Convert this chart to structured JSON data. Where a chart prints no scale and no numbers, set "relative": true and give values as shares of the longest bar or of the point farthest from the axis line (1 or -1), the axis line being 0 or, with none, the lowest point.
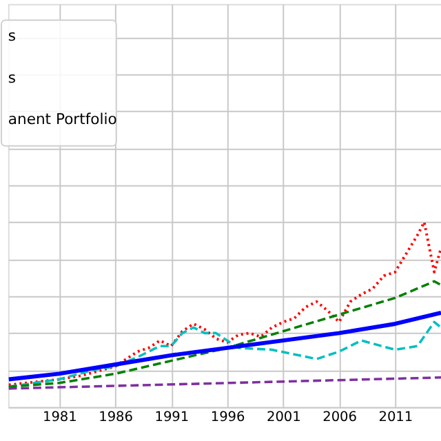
{
  "chart_data": {
    "type": "line",
    "relative": true,
    "grid": true,
    "xlim": [
      1976.44,
      2015.1
    ],
    "xticks": [
      1981,
      1986,
      1991,
      1996,
      2001,
      2006,
      2011
    ],
    "annotations": [
      "s",
      "s",
      "anent Portfolio"
    ],
    "series": [
      {
        "color": "#ff0000",
        "line_style": "dotted",
        "x": [
          1976.5,
          1981,
          1983,
          1986,
          1987,
          1988,
          1989,
          1990,
          1991,
          1992,
          1993,
          1994,
          1995,
          1996,
          1997,
          1998,
          1999,
          2000,
          2001,
          2002,
          2003,
          2004,
          2005,
          2006,
          2007,
          2008,
          2009,
          2010,
          2011,
          2012,
          2013,
          2013.6,
          2014.5,
          2015.1
        ],
        "values": [
          0.12,
          0.15,
          0.17,
          0.22,
          0.26,
          0.3,
          0.32,
          0.36,
          0.33,
          0.41,
          0.45,
          0.42,
          0.37,
          0.35,
          0.39,
          0.4,
          0.38,
          0.43,
          0.46,
          0.48,
          0.54,
          0.57,
          0.52,
          0.46,
          0.57,
          0.61,
          0.64,
          0.71,
          0.73,
          0.83,
          0.93,
          1.0,
          0.73,
          0.86
        ]
      },
      {
        "color": "#00bfbf",
        "line_style": "dashed",
        "x": [
          1976.5,
          1981,
          1984,
          1986,
          1988,
          1990,
          1991,
          1992,
          1993,
          1994,
          1995,
          1996,
          1997,
          2000,
          2004,
          2006,
          2008,
          2011,
          2013,
          2014.5,
          2015.1
        ],
        "values": [
          0.11,
          0.15,
          0.2,
          0.22,
          0.27,
          0.33,
          0.33,
          0.4,
          0.43,
          0.4,
          0.4,
          0.36,
          0.32,
          0.31,
          0.26,
          0.3,
          0.36,
          0.31,
          0.33,
          0.46,
          0.43
        ]
      },
      {
        "color": "#008000",
        "line_style": "dashed",
        "x": [
          1976.5,
          1981,
          1986,
          1991,
          1996,
          2001,
          2006,
          2011,
          2014.5,
          2015.1
        ],
        "values": [
          0.11,
          0.13,
          0.18,
          0.25,
          0.32,
          0.41,
          0.5,
          0.59,
          0.68,
          0.66
        ]
      },
      {
        "color": "#0000ff",
        "line_style": "solid",
        "x": [
          1976.5,
          1981,
          1986,
          1991,
          1996,
          2001,
          2006,
          2011,
          2015.1
        ],
        "values": [
          0.15,
          0.18,
          0.23,
          0.28,
          0.32,
          0.36,
          0.4,
          0.45,
          0.51
        ]
      },
      {
        "color": "#7f2f9f",
        "line_style": "dashed",
        "x": [
          1976.5,
          1996,
          2015.1
        ],
        "values": [
          0.1,
          0.13,
          0.16
        ]
      }
    ]
  }
}
